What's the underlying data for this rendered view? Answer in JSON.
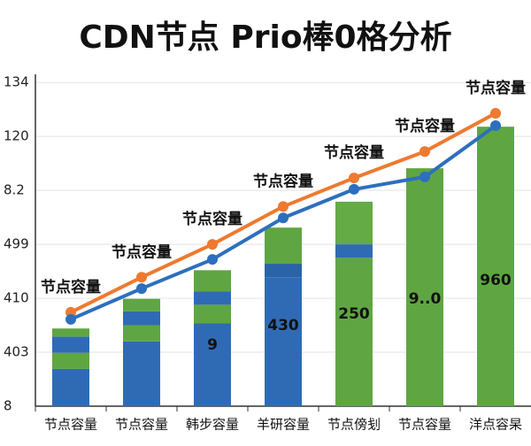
{
  "chart_data": {
    "type": "bar-line",
    "title": "CDN节点 Prio棒0格分析",
    "categories": [
      "节点容量",
      "节点容量",
      "韩步容量",
      "羊研容量",
      "节点傍刬",
      "节点容量",
      "洋点容杲"
    ],
    "ylim": [
      0,
      6.2
    ],
    "yticks": [
      {
        "value": 0,
        "label": "8"
      },
      {
        "value": 1,
        "label": "403"
      },
      {
        "value": 2,
        "label": "410"
      },
      {
        "value": 3,
        "label": "499"
      },
      {
        "value": 4,
        "label": "8.2"
      },
      {
        "value": 5,
        "label": "120"
      },
      {
        "value": 6,
        "label": "134"
      }
    ],
    "grid": true,
    "series": [
      {
        "values": [
          0.69,
          1.2,
          1.54,
          2.39,
          2.75,
          4.41,
          5.18
        ],
        "colors": [
          "#2f6bb5",
          "#2f6bb5",
          "#2f6bb5",
          "#2f6bb5",
          "#5fa642",
          "#5fa642",
          "#5fa642"
        ]
      },
      {
        "values": [
          0.3,
          0.3,
          0.34,
          0.25,
          0.25,
          null,
          null
        ],
        "colors": [
          "#5fa642",
          "#5fa642",
          "#5fa642",
          "#2a63a8",
          "#2f6bb5",
          null,
          null
        ]
      },
      {
        "values": [
          0.3,
          0.26,
          0.25,
          0.67,
          0.79,
          null,
          null
        ],
        "colors": [
          "#2f6bb5",
          "#2f6bb5",
          "#2f6bb5",
          "#5fa642",
          "#64ab46",
          null,
          null
        ]
      },
      {
        "values": [
          0.15,
          0.23,
          0.39,
          null,
          null,
          null,
          null
        ],
        "colors": [
          "#5fa642",
          "#5fa642",
          "#5fa642",
          null,
          null,
          null,
          null
        ]
      }
    ],
    "bar_labels": [
      null,
      null,
      "9",
      "430",
      "250",
      "9..0",
      "960"
    ],
    "lines": [
      {
        "color": "#ee7a2f",
        "values": [
          1.74,
          2.39,
          3.0,
          3.7,
          4.23,
          4.72,
          5.43
        ]
      },
      {
        "color": "#2d6fbe",
        "values": [
          1.61,
          2.18,
          2.72,
          3.49,
          4.02,
          4.25,
          5.2
        ]
      }
    ],
    "annotations": [
      "节点容量",
      "节点容量",
      "节点容量",
      "节点容量",
      "节点容量",
      "节点容量",
      "节点容量"
    ]
  }
}
